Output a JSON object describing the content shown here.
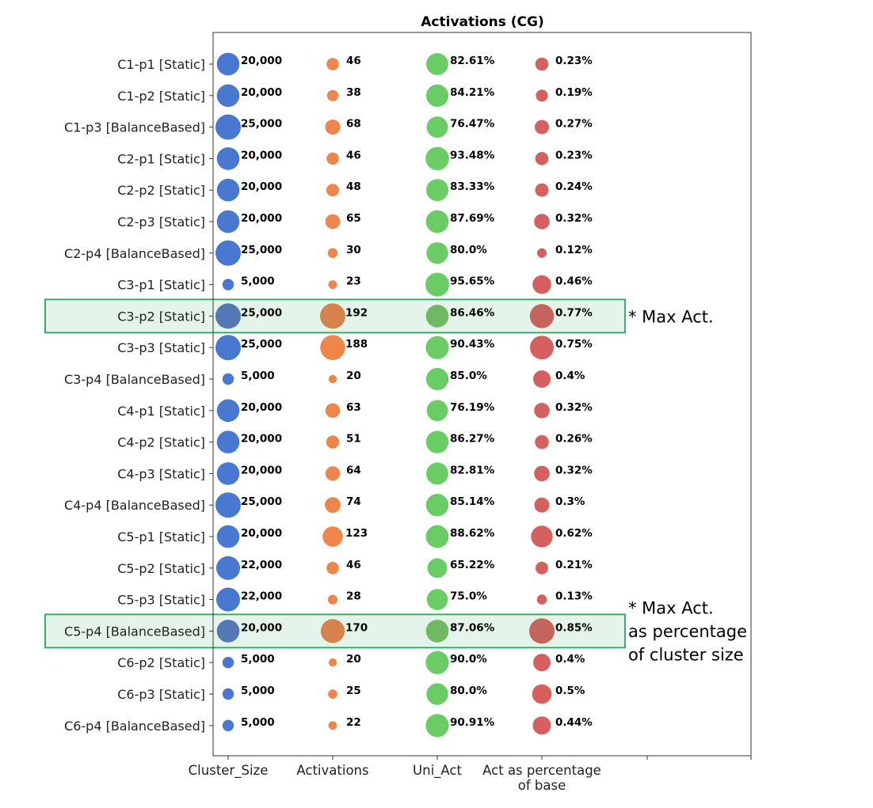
{
  "chart_data": {
    "type": "scatter",
    "title": "Activations (CG)",
    "columns": [
      "Cluster_Size",
      "Activations",
      "Uni_Act",
      "Act as percentage of base"
    ],
    "column_tick_lines": [
      [
        "Cluster_Size"
      ],
      [
        "Activations"
      ],
      [
        "Uni_Act"
      ],
      [
        "Act as percentage",
        "of base"
      ]
    ],
    "colors": {
      "Cluster_Size": "#4878cf",
      "Activations": "#ee854a",
      "Uni_Act": "#6acc65",
      "Act as percentage of base": "#d65f5f"
    },
    "highlight_color": "#2aa55a",
    "rows": [
      {
        "label": "C1-p1 [Static]",
        "cluster_size": 20000,
        "cluster_size_label": "20,000",
        "activations": 46,
        "activations_label": "46",
        "uni_act": 82.61,
        "uni_act_label": "82.61%",
        "act_pct": 0.23,
        "act_pct_label": "0.23%",
        "highlight": false
      },
      {
        "label": "C1-p2 [Static]",
        "cluster_size": 20000,
        "cluster_size_label": "20,000",
        "activations": 38,
        "activations_label": "38",
        "uni_act": 84.21,
        "uni_act_label": "84.21%",
        "act_pct": 0.19,
        "act_pct_label": "0.19%",
        "highlight": false
      },
      {
        "label": "C1-p3 [BalanceBased]",
        "cluster_size": 25000,
        "cluster_size_label": "25,000",
        "activations": 68,
        "activations_label": "68",
        "uni_act": 76.47,
        "uni_act_label": "76.47%",
        "act_pct": 0.27,
        "act_pct_label": "0.27%",
        "highlight": false
      },
      {
        "label": "C2-p1 [Static]",
        "cluster_size": 20000,
        "cluster_size_label": "20,000",
        "activations": 46,
        "activations_label": "46",
        "uni_act": 93.48,
        "uni_act_label": "93.48%",
        "act_pct": 0.23,
        "act_pct_label": "0.23%",
        "highlight": false
      },
      {
        "label": "C2-p2 [Static]",
        "cluster_size": 20000,
        "cluster_size_label": "20,000",
        "activations": 48,
        "activations_label": "48",
        "uni_act": 83.33,
        "uni_act_label": "83.33%",
        "act_pct": 0.24,
        "act_pct_label": "0.24%",
        "highlight": false
      },
      {
        "label": "C2-p3 [Static]",
        "cluster_size": 20000,
        "cluster_size_label": "20,000",
        "activations": 65,
        "activations_label": "65",
        "uni_act": 87.69,
        "uni_act_label": "87.69%",
        "act_pct": 0.32,
        "act_pct_label": "0.32%",
        "highlight": false
      },
      {
        "label": "C2-p4 [BalanceBased]",
        "cluster_size": 25000,
        "cluster_size_label": "25,000",
        "activations": 30,
        "activations_label": "30",
        "uni_act": 80.0,
        "uni_act_label": "80.0%",
        "act_pct": 0.12,
        "act_pct_label": "0.12%",
        "highlight": false
      },
      {
        "label": "C3-p1 [Static]",
        "cluster_size": 5000,
        "cluster_size_label": "5,000",
        "activations": 23,
        "activations_label": "23",
        "uni_act": 95.65,
        "uni_act_label": "95.65%",
        "act_pct": 0.46,
        "act_pct_label": "0.46%",
        "highlight": false
      },
      {
        "label": "C3-p2 [Static]",
        "cluster_size": 25000,
        "cluster_size_label": "25,000",
        "activations": 192,
        "activations_label": "192",
        "uni_act": 86.46,
        "uni_act_label": "86.46%",
        "act_pct": 0.77,
        "act_pct_label": "0.77%",
        "highlight": true
      },
      {
        "label": "C3-p3 [Static]",
        "cluster_size": 25000,
        "cluster_size_label": "25,000",
        "activations": 188,
        "activations_label": "188",
        "uni_act": 90.43,
        "uni_act_label": "90.43%",
        "act_pct": 0.75,
        "act_pct_label": "0.75%",
        "highlight": false
      },
      {
        "label": "C3-p4 [BalanceBased]",
        "cluster_size": 5000,
        "cluster_size_label": "5,000",
        "activations": 20,
        "activations_label": "20",
        "uni_act": 85.0,
        "uni_act_label": "85.0%",
        "act_pct": 0.4,
        "act_pct_label": "0.4%",
        "highlight": false
      },
      {
        "label": "C4-p1 [Static]",
        "cluster_size": 20000,
        "cluster_size_label": "20,000",
        "activations": 63,
        "activations_label": "63",
        "uni_act": 76.19,
        "uni_act_label": "76.19%",
        "act_pct": 0.32,
        "act_pct_label": "0.32%",
        "highlight": false
      },
      {
        "label": "C4-p2 [Static]",
        "cluster_size": 20000,
        "cluster_size_label": "20,000",
        "activations": 51,
        "activations_label": "51",
        "uni_act": 86.27,
        "uni_act_label": "86.27%",
        "act_pct": 0.26,
        "act_pct_label": "0.26%",
        "highlight": false
      },
      {
        "label": "C4-p3 [Static]",
        "cluster_size": 20000,
        "cluster_size_label": "20,000",
        "activations": 64,
        "activations_label": "64",
        "uni_act": 82.81,
        "uni_act_label": "82.81%",
        "act_pct": 0.32,
        "act_pct_label": "0.32%",
        "highlight": false
      },
      {
        "label": "C4-p4 [BalanceBased]",
        "cluster_size": 25000,
        "cluster_size_label": "25,000",
        "activations": 74,
        "activations_label": "74",
        "uni_act": 85.14,
        "uni_act_label": "85.14%",
        "act_pct": 0.3,
        "act_pct_label": "0.3%",
        "highlight": false
      },
      {
        "label": "C5-p1 [Static]",
        "cluster_size": 20000,
        "cluster_size_label": "20,000",
        "activations": 123,
        "activations_label": "123",
        "uni_act": 88.62,
        "uni_act_label": "88.62%",
        "act_pct": 0.62,
        "act_pct_label": "0.62%",
        "highlight": false
      },
      {
        "label": "C5-p2 [Static]",
        "cluster_size": 22000,
        "cluster_size_label": "22,000",
        "activations": 46,
        "activations_label": "46",
        "uni_act": 65.22,
        "uni_act_label": "65.22%",
        "act_pct": 0.21,
        "act_pct_label": "0.21%",
        "highlight": false
      },
      {
        "label": "C5-p3 [Static]",
        "cluster_size": 22000,
        "cluster_size_label": "22,000",
        "activations": 28,
        "activations_label": "28",
        "uni_act": 75.0,
        "uni_act_label": "75.0%",
        "act_pct": 0.13,
        "act_pct_label": "0.13%",
        "highlight": false
      },
      {
        "label": "C5-p4 [BalanceBased]",
        "cluster_size": 20000,
        "cluster_size_label": "20,000",
        "activations": 170,
        "activations_label": "170",
        "uni_act": 87.06,
        "uni_act_label": "87.06%",
        "act_pct": 0.85,
        "act_pct_label": "0.85%",
        "highlight": true
      },
      {
        "label": "C6-p2 [Static]",
        "cluster_size": 5000,
        "cluster_size_label": "5,000",
        "activations": 20,
        "activations_label": "20",
        "uni_act": 90.0,
        "uni_act_label": "90.0%",
        "act_pct": 0.4,
        "act_pct_label": "0.4%",
        "highlight": false
      },
      {
        "label": "C6-p3 [Static]",
        "cluster_size": 5000,
        "cluster_size_label": "5,000",
        "activations": 25,
        "activations_label": "25",
        "uni_act": 80.0,
        "uni_act_label": "80.0%",
        "act_pct": 0.5,
        "act_pct_label": "0.5%",
        "highlight": false
      },
      {
        "label": "C6-p4 [BalanceBased]",
        "cluster_size": 5000,
        "cluster_size_label": "5,000",
        "activations": 22,
        "activations_label": "22",
        "uni_act": 90.91,
        "uni_act_label": "90.91%",
        "act_pct": 0.44,
        "act_pct_label": "0.44%",
        "highlight": false
      }
    ],
    "annotations": [
      {
        "target": "C3-p2 [Static]",
        "lines": [
          "* Max Act."
        ]
      },
      {
        "target": "C5-p4 [BalanceBased]",
        "lines": [
          "* Max Act.",
          "as percentage",
          "of cluster size"
        ]
      }
    ]
  }
}
